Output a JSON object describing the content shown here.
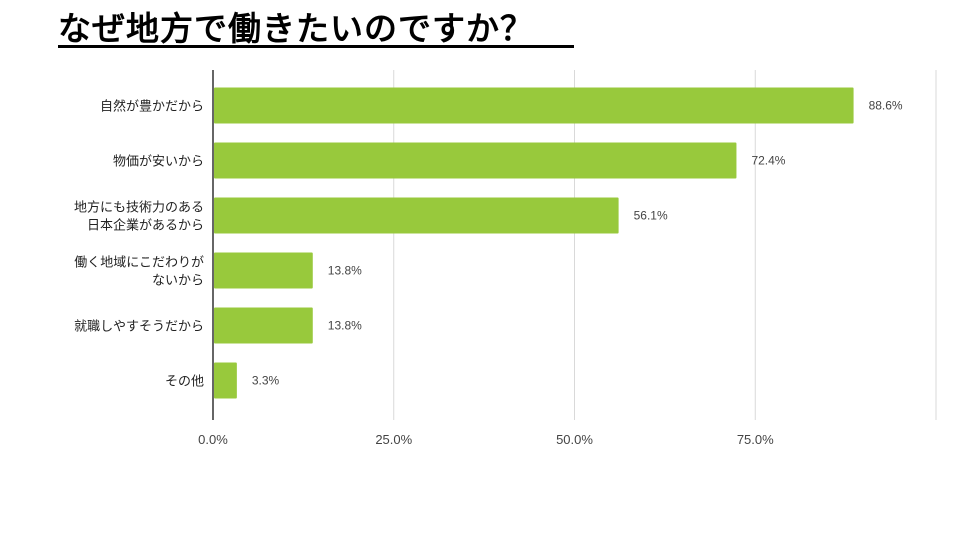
{
  "title": "なぜ地方で働きたいのですか？",
  "chart_data": {
    "type": "bar",
    "orientation": "horizontal",
    "categories": [
      [
        "自然が豊かだから"
      ],
      [
        "物価が安いから"
      ],
      [
        "地方にも技術力のある",
        "日本企業があるから"
      ],
      [
        "働く地域にこだわりが",
        "ないから"
      ],
      [
        "就職しやすそうだから"
      ],
      [
        "その他"
      ]
    ],
    "values": [
      88.6,
      72.4,
      56.1,
      13.8,
      13.8,
      3.3
    ],
    "value_labels": [
      "88.6%",
      "72.4%",
      "56.1%",
      "13.8%",
      "13.8%",
      "3.3%"
    ],
    "xlim": [
      0,
      100
    ],
    "x_ticks": [
      0,
      25,
      50,
      75,
      100
    ],
    "x_tick_labels": [
      "0.0%",
      "25.0%",
      "50.0%",
      "75.0%",
      ""
    ],
    "grid": true,
    "bar_color": "#98c93c",
    "xlabel": "",
    "ylabel": ""
  }
}
